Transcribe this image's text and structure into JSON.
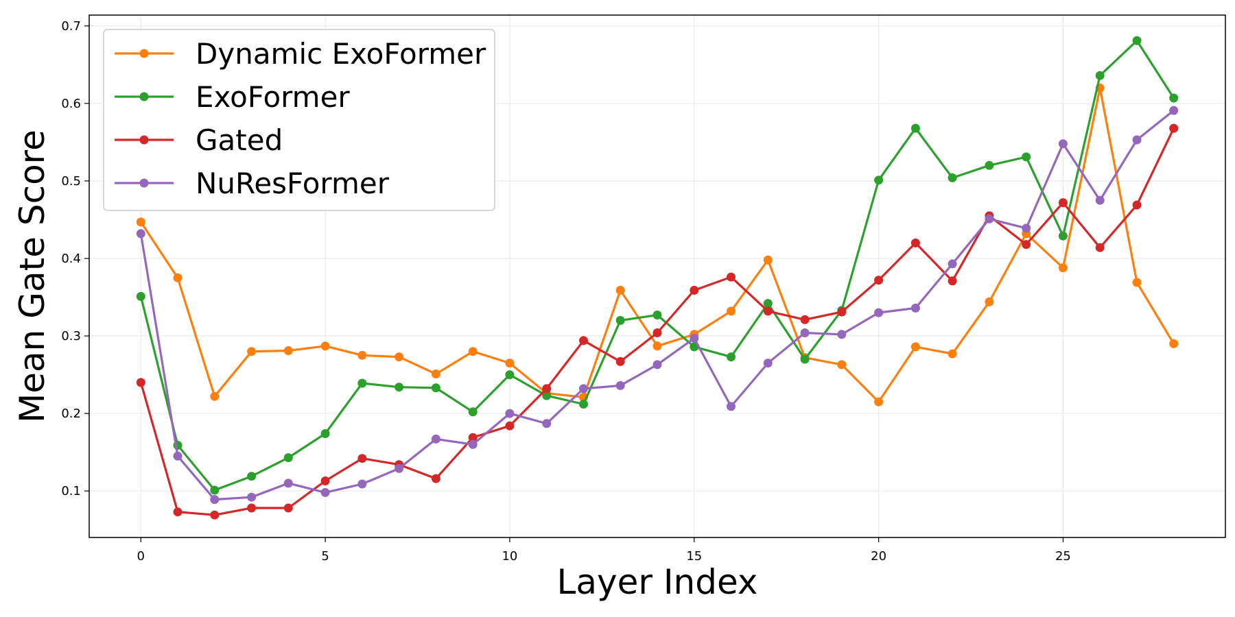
{
  "chart_data": {
    "type": "line",
    "title": "",
    "xlabel": "Layer Index",
    "ylabel": "Mean Gate Score",
    "xlim": [
      -1.4,
      29.4
    ],
    "ylim": [
      0.04,
      0.714
    ],
    "xticks": [
      0,
      5,
      10,
      15,
      20,
      25
    ],
    "yticks": [
      0.1,
      0.2,
      0.3,
      0.4,
      0.5,
      0.6,
      0.7
    ],
    "grid": true,
    "legend_position": "top-left",
    "x": [
      0,
      1,
      2,
      3,
      4,
      5,
      6,
      7,
      8,
      9,
      10,
      11,
      12,
      13,
      14,
      15,
      16,
      17,
      18,
      19,
      20,
      21,
      22,
      23,
      24,
      25,
      26,
      27,
      28
    ],
    "series": [
      {
        "name": "Dynamic ExoFormer",
        "color": "#ff7f0e",
        "values": [
          0.447,
          0.375,
          0.222,
          0.28,
          0.281,
          0.287,
          0.275,
          0.273,
          0.251,
          0.28,
          0.265,
          0.226,
          0.221,
          0.359,
          0.287,
          0.302,
          0.332,
          0.398,
          0.272,
          0.263,
          0.215,
          0.286,
          0.277,
          0.344,
          0.432,
          0.388,
          0.62,
          0.369,
          0.29
        ]
      },
      {
        "name": "ExoFormer",
        "color": "#2ca02c",
        "values": [
          0.351,
          0.159,
          0.101,
          0.119,
          0.143,
          0.174,
          0.239,
          0.234,
          0.233,
          0.202,
          0.25,
          0.223,
          0.212,
          0.32,
          0.327,
          0.286,
          0.273,
          0.342,
          0.27,
          0.333,
          0.501,
          0.568,
          0.504,
          0.52,
          0.531,
          0.429,
          0.636,
          0.681,
          0.607
        ]
      },
      {
        "name": "Gated",
        "color": "#d62728",
        "values": [
          0.24,
          0.073,
          0.069,
          0.078,
          0.078,
          0.113,
          0.142,
          0.134,
          0.116,
          0.169,
          0.184,
          0.232,
          0.294,
          0.267,
          0.304,
          0.359,
          0.376,
          0.332,
          0.321,
          0.331,
          0.372,
          0.42,
          0.371,
          0.455,
          0.418,
          0.472,
          0.414,
          0.469,
          0.568
        ]
      },
      {
        "name": "NuResFormer",
        "color": "#9467bd",
        "values": [
          0.432,
          0.145,
          0.089,
          0.092,
          0.11,
          0.098,
          0.109,
          0.129,
          0.167,
          0.16,
          0.2,
          0.187,
          0.232,
          0.236,
          0.263,
          0.297,
          0.209,
          0.265,
          0.304,
          0.302,
          0.33,
          0.336,
          0.393,
          0.451,
          0.439,
          0.548,
          0.475,
          0.553,
          0.591
        ]
      }
    ]
  }
}
